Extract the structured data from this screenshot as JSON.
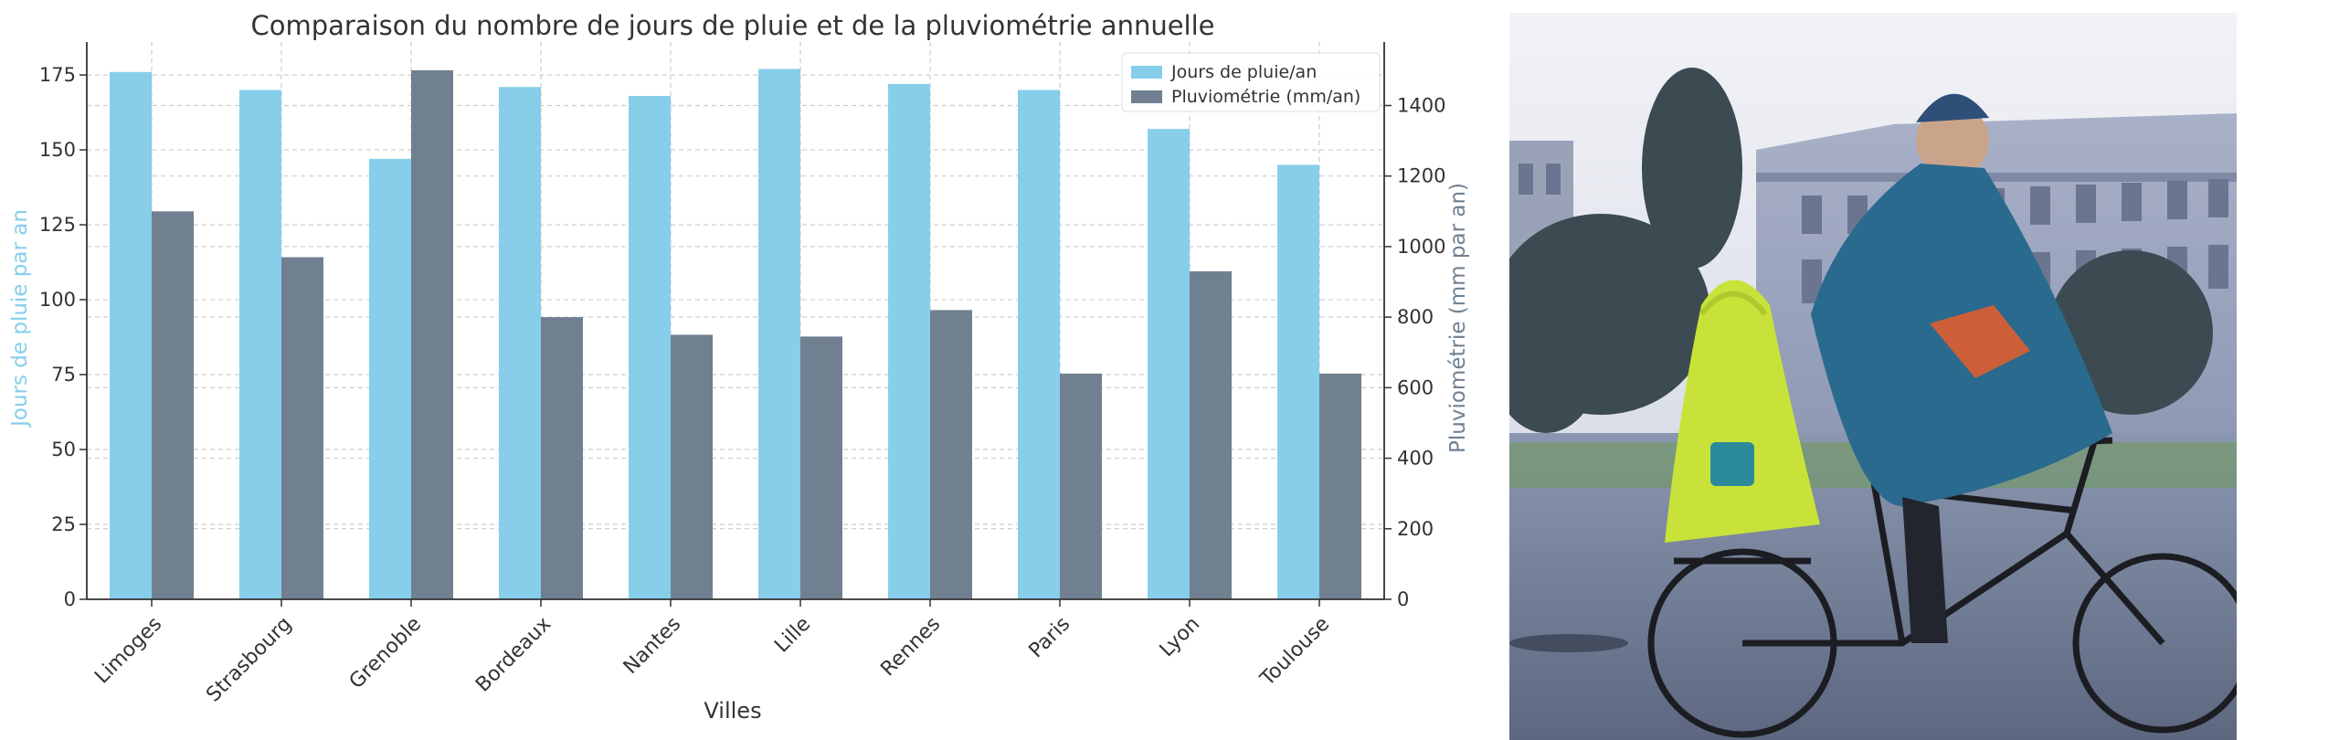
{
  "chart_data": {
    "type": "bar",
    "title": "Comparaison du nombre de jours de pluie et de la pluviométrie annuelle",
    "xlabel": "Villes",
    "ylabel_left": "Jours de pluie par an",
    "ylabel_right": "Pluviométrie (mm par an)",
    "categories": [
      "Limoges",
      "Strasbourg",
      "Grenoble",
      "Bordeaux",
      "Nantes",
      "Lille",
      "Rennes",
      "Paris",
      "Lyon",
      "Toulouse"
    ],
    "series": [
      {
        "name": "Jours de pluie/an",
        "axis": "left",
        "color": "#87ceeb",
        "values": [
          176,
          170,
          147,
          171,
          168,
          177,
          172,
          170,
          157,
          145
        ]
      },
      {
        "name": "Pluviométrie (mm/an)",
        "axis": "right",
        "color": "#708090",
        "values": [
          1100,
          970,
          1500,
          800,
          750,
          745,
          820,
          640,
          930,
          640
        ]
      }
    ],
    "ylim_left": [
      0,
      186
    ],
    "yticks_left": [
      "0",
      "25",
      "50",
      "75",
      "100",
      "125",
      "150",
      "175"
    ],
    "ylim_right": [
      0,
      1580
    ],
    "yticks_right": [
      "0",
      "200",
      "400",
      "600",
      "800",
      "1000",
      "1200",
      "1400"
    ],
    "grid": true,
    "legend_position": "top-right"
  },
  "photo": {
    "subject": "adult-and-child-cycling-in-rain-ponchos"
  }
}
